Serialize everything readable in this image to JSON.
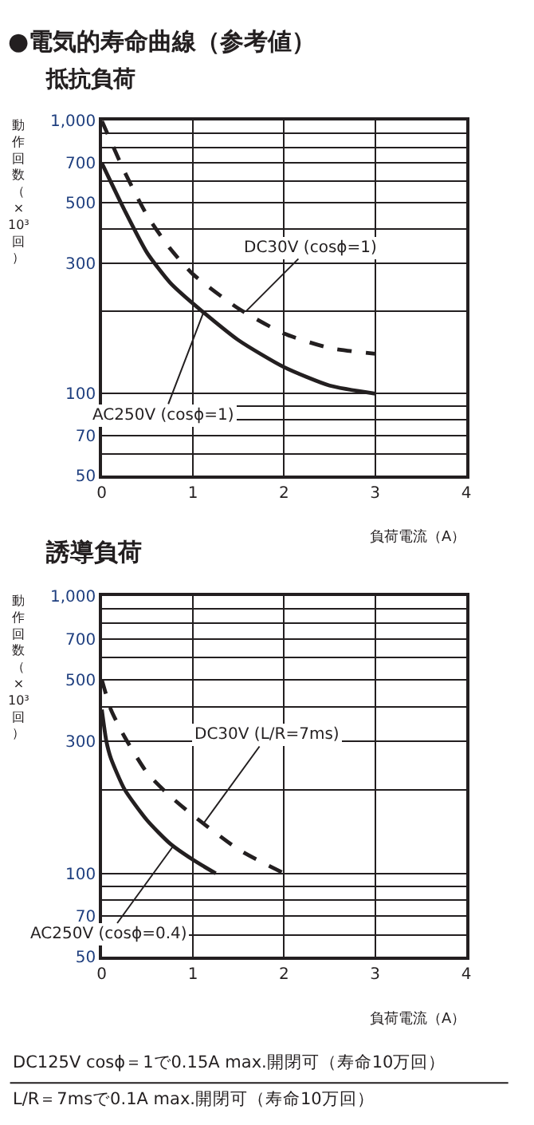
{
  "chart_data": [
    {
      "type": "line",
      "title": "●電気的寿命曲線（参考値）",
      "subtitle": "抵抗負荷",
      "xlabel": "負荷電流（A）",
      "ylabel": "動作回数（×10³回）",
      "log": "y",
      "grid": true,
      "xlim": [
        0,
        4
      ],
      "xticks": [
        0,
        1,
        2,
        3,
        4
      ],
      "ylim": [
        50,
        1000
      ],
      "yticks": [
        50,
        {
          "value": 60,
          "label": null
        },
        70,
        {
          "value": 80,
          "label": null
        },
        {
          "value": 90,
          "label": null
        },
        100,
        {
          "value": 200,
          "label": null
        },
        300,
        {
          "value": 400,
          "label": null
        },
        500,
        {
          "value": 600,
          "label": null
        },
        700,
        {
          "value": 800,
          "label": null
        },
        {
          "value": 900,
          "label": null
        },
        {
          "value": 1000,
          "label": "1,000"
        }
      ],
      "series": [
        {
          "color": "#231f20",
          "line_style": "solid",
          "x": [
            0,
            0.25,
            0.5,
            0.75,
            1,
            1.5,
            2,
            2.5,
            3
          ],
          "values": [
            700,
            470,
            327,
            255,
            214,
            157,
            125,
            107,
            100
          ]
        },
        {
          "color": "#231f20",
          "line_style": "dashed",
          "x": [
            0,
            0.25,
            0.5,
            0.75,
            1,
            1.5,
            2,
            2.5,
            3
          ],
          "values": [
            1000,
            650,
            448,
            340,
            274,
            205,
            166,
            147,
            140
          ]
        }
      ],
      "annotations": [
        {
          "text": "DC30V (cosϕ=1)",
          "x": 1.58,
          "y": 200
        },
        {
          "text": "AC250V (cosϕ=1)",
          "x": 1.12,
          "y": 200
        }
      ]
    },
    {
      "type": "line",
      "title": "誘導負荷",
      "xlabel": "負荷電流（A）",
      "ylabel": "動作回数（×10³回）",
      "log": "y",
      "grid": true,
      "xlim": [
        0,
        4
      ],
      "xticks": [
        0,
        1,
        2,
        3,
        4
      ],
      "ylim": [
        50,
        1000
      ],
      "yticks": [
        50,
        {
          "value": 60,
          "label": null
        },
        70,
        {
          "value": 80,
          "label": null
        },
        {
          "value": 90,
          "label": null
        },
        100,
        {
          "value": 200,
          "label": null
        },
        300,
        {
          "value": 400,
          "label": null
        },
        500,
        {
          "value": 600,
          "label": null
        },
        700,
        {
          "value": 800,
          "label": null
        },
        {
          "value": 900,
          "label": null
        },
        {
          "value": 1000,
          "label": "1,000"
        }
      ],
      "series": [
        {
          "color": "#231f20",
          "line_style": "solid",
          "x": [
            0,
            0.05,
            0.1,
            0.25,
            0.5,
            0.75,
            1,
            1.25
          ],
          "values": [
            390,
            300,
            260,
            201,
            155,
            128,
            112,
            100
          ]
        },
        {
          "color": "#231f20",
          "line_style": "dashed",
          "x": [
            0,
            0.1,
            0.25,
            0.5,
            0.75,
            1,
            1.5,
            2
          ],
          "values": [
            500,
            390,
            311,
            230,
            190,
            162,
            122,
            100
          ]
        }
      ],
      "annotations": [
        {
          "text": "DC30V (L/R=7ms)",
          "x": 1.12,
          "y": 152
        },
        {
          "text": "AC250V (cosϕ=0.4)",
          "x": 0.78,
          "y": 125
        },
        "DC125V cosϕ＝1で0.15A max.開閉可（寿命10万回）",
        "L/R＝7msで0.1A max.開閉可（寿命10万回）"
      ]
    }
  ]
}
